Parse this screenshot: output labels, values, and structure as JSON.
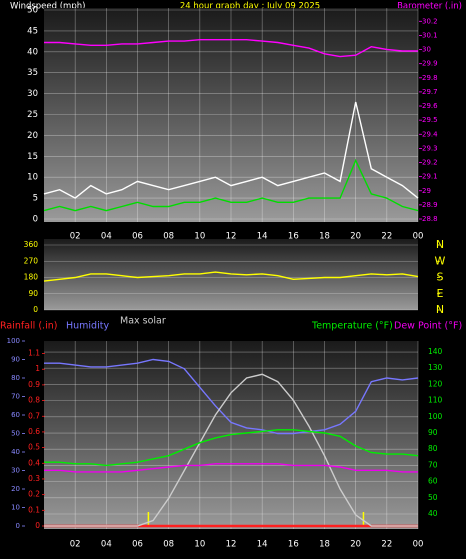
{
  "chart_data": [
    {
      "type": "line",
      "title": "24 hour graph day : July 09 2025",
      "title_color": "#ffff00",
      "ylabel": "Windspeed (mph)",
      "ycolor": "#ffffff",
      "y2label": "Barometer (.in)",
      "y2color": "#ff00ff",
      "x": [
        0,
        1,
        2,
        3,
        4,
        5,
        6,
        7,
        8,
        9,
        10,
        11,
        12,
        13,
        14,
        15,
        16,
        17,
        18,
        19,
        20,
        21,
        22,
        23,
        24
      ],
      "xlim": [
        0,
        24
      ],
      "xticks": [
        {
          "value": 2,
          "label": "02"
        },
        {
          "value": 4,
          "label": "04"
        },
        {
          "value": 6,
          "label": "06"
        },
        {
          "value": 8,
          "label": "08"
        },
        10,
        12,
        14,
        16,
        18,
        20,
        22,
        {
          "value": 24,
          "label": "00"
        }
      ],
      "ylim": [
        0,
        50
      ],
      "yticks": [
        0,
        5,
        10,
        15,
        20,
        25,
        30,
        35,
        40,
        45,
        50
      ],
      "y2lim": [
        28.8,
        30.28
      ],
      "y2ticks": [
        28.8,
        28.9,
        29,
        29.1,
        29.2,
        29.3,
        29.4,
        29.5,
        29.6,
        29.7,
        29.8,
        29.9,
        30,
        30.1,
        30.2
      ],
      "grid": true,
      "grid_axis": "y",
      "series": [
        {
          "color": "#ffffff",
          "axis": "y",
          "values": [
            6,
            7,
            5,
            8,
            6,
            7,
            9,
            8,
            7,
            8,
            9,
            10,
            8,
            9,
            10,
            8,
            9,
            10,
            11,
            9,
            28,
            12,
            10,
            8,
            5
          ]
        },
        {
          "color": "#00dd00",
          "axis": "y",
          "values": [
            2,
            3,
            2,
            3,
            2,
            3,
            4,
            3,
            3,
            4,
            4,
            5,
            4,
            4,
            5,
            4,
            4,
            5,
            5,
            5,
            14,
            6,
            5,
            3,
            2
          ]
        },
        {
          "color": "#ff00ff",
          "axis": "y2",
          "values": [
            30.05,
            30.05,
            30.04,
            30.03,
            30.03,
            30.04,
            30.04,
            30.05,
            30.06,
            30.06,
            30.07,
            30.07,
            30.07,
            30.07,
            30.06,
            30.05,
            30.03,
            30.01,
            29.97,
            29.95,
            29.96,
            30.02,
            30.0,
            29.99,
            29.99
          ]
        }
      ]
    },
    {
      "type": "line",
      "ycolor": "#ffff00",
      "y2color": "#ffff00",
      "x": [
        0,
        1,
        2,
        3,
        4,
        5,
        6,
        7,
        8,
        9,
        10,
        11,
        12,
        13,
        14,
        15,
        16,
        17,
        18,
        19,
        20,
        21,
        22,
        23,
        24
      ],
      "xlim": [
        0,
        24
      ],
      "ylim": [
        0,
        360
      ],
      "yticks": [
        0,
        90,
        180,
        270,
        360
      ],
      "y2lim": [
        0,
        360
      ],
      "y2ticks": [
        {
          "value": 360,
          "label": "N"
        },
        {
          "value": 270,
          "label": "W"
        },
        {
          "value": 180,
          "label": "S"
        },
        {
          "value": 90,
          "label": "E"
        },
        {
          "value": 0,
          "label": "N"
        }
      ],
      "grid": true,
      "grid_axis": "y",
      "series": [
        {
          "color": "#ffff00",
          "axis": "y",
          "values": [
            160,
            170,
            180,
            200,
            200,
            190,
            180,
            185,
            190,
            200,
            200,
            210,
            200,
            195,
            200,
            190,
            170,
            175,
            180,
            180,
            190,
            200,
            195,
            200,
            185
          ]
        }
      ]
    },
    {
      "type": "line",
      "ycolor": "#8888ff",
      "y2color": "#00ee00",
      "y3color": "#ff2020",
      "x": [
        0,
        1,
        2,
        3,
        4,
        5,
        6,
        7,
        8,
        9,
        10,
        11,
        12,
        13,
        14,
        15,
        16,
        17,
        18,
        19,
        20,
        21,
        22,
        23,
        24
      ],
      "xlim": [
        0,
        24
      ],
      "xticks": [
        {
          "value": 2,
          "label": "02"
        },
        {
          "value": 4,
          "label": "04"
        },
        {
          "value": 6,
          "label": "06"
        },
        {
          "value": 8,
          "label": "08"
        },
        10,
        12,
        14,
        16,
        18,
        20,
        22,
        {
          "value": 24,
          "label": "00"
        }
      ],
      "ylim": [
        0,
        100
      ],
      "yticks": [
        0,
        10,
        20,
        30,
        40,
        50,
        60,
        70,
        80,
        90,
        100
      ],
      "y2lim": [
        32.6,
        146.8
      ],
      "y2ticks": [
        40,
        50,
        60,
        70,
        80,
        90,
        100,
        110,
        120,
        130,
        140
      ],
      "y3lim": [
        0,
        1.18
      ],
      "y3ticks": [
        0,
        0.1,
        0.2,
        0.3,
        0.4,
        0.5,
        0.6,
        0.7,
        0.8,
        0.9,
        1,
        1.1
      ],
      "grid": true,
      "grid_axis": "y2",
      "markers_x": [
        6.7,
        20.5
      ],
      "marker_color": "#ffff00",
      "series": [
        {
          "name": "Rainfall (.in)",
          "color": "#ff2020",
          "axis": "y3",
          "values": [
            0,
            0,
            0,
            0,
            0,
            0,
            0,
            0,
            0,
            0,
            0,
            0,
            0,
            0,
            0,
            0,
            0,
            0,
            0,
            0,
            0,
            0,
            0,
            0,
            0
          ]
        },
        {
          "name": "Humidity",
          "color": "#7777ff",
          "axis": "y",
          "values": [
            88,
            88,
            87,
            86,
            86,
            87,
            88,
            90,
            89,
            85,
            75,
            65,
            56,
            53,
            52,
            50,
            50,
            51,
            52,
            55,
            62,
            78,
            80,
            79,
            80
          ]
        },
        {
          "name": "Max solar",
          "color": "#cccccc",
          "axis": "y",
          "values": [
            0,
            0,
            0,
            0,
            0,
            0,
            0,
            3,
            15,
            30,
            45,
            60,
            72,
            80,
            82,
            78,
            68,
            54,
            38,
            20,
            6,
            0,
            0,
            0,
            0
          ]
        },
        {
          "name": "Temperature (°F)",
          "color": "#00ee00",
          "axis": "y2",
          "values": [
            72,
            72,
            71,
            71,
            70,
            71,
            72,
            74,
            76,
            80,
            84,
            87,
            89,
            90,
            91,
            92,
            92,
            91,
            90,
            88,
            82,
            78,
            77,
            77,
            76
          ]
        },
        {
          "name": "Dew Point (°F)",
          "color": "#ee00ee",
          "axis": "y2",
          "values": [
            67,
            67,
            66,
            66,
            66,
            66,
            67,
            68,
            69,
            70,
            70,
            71,
            71,
            71,
            71,
            71,
            70,
            70,
            70,
            69,
            67,
            67,
            67,
            66,
            66
          ]
        }
      ]
    }
  ]
}
